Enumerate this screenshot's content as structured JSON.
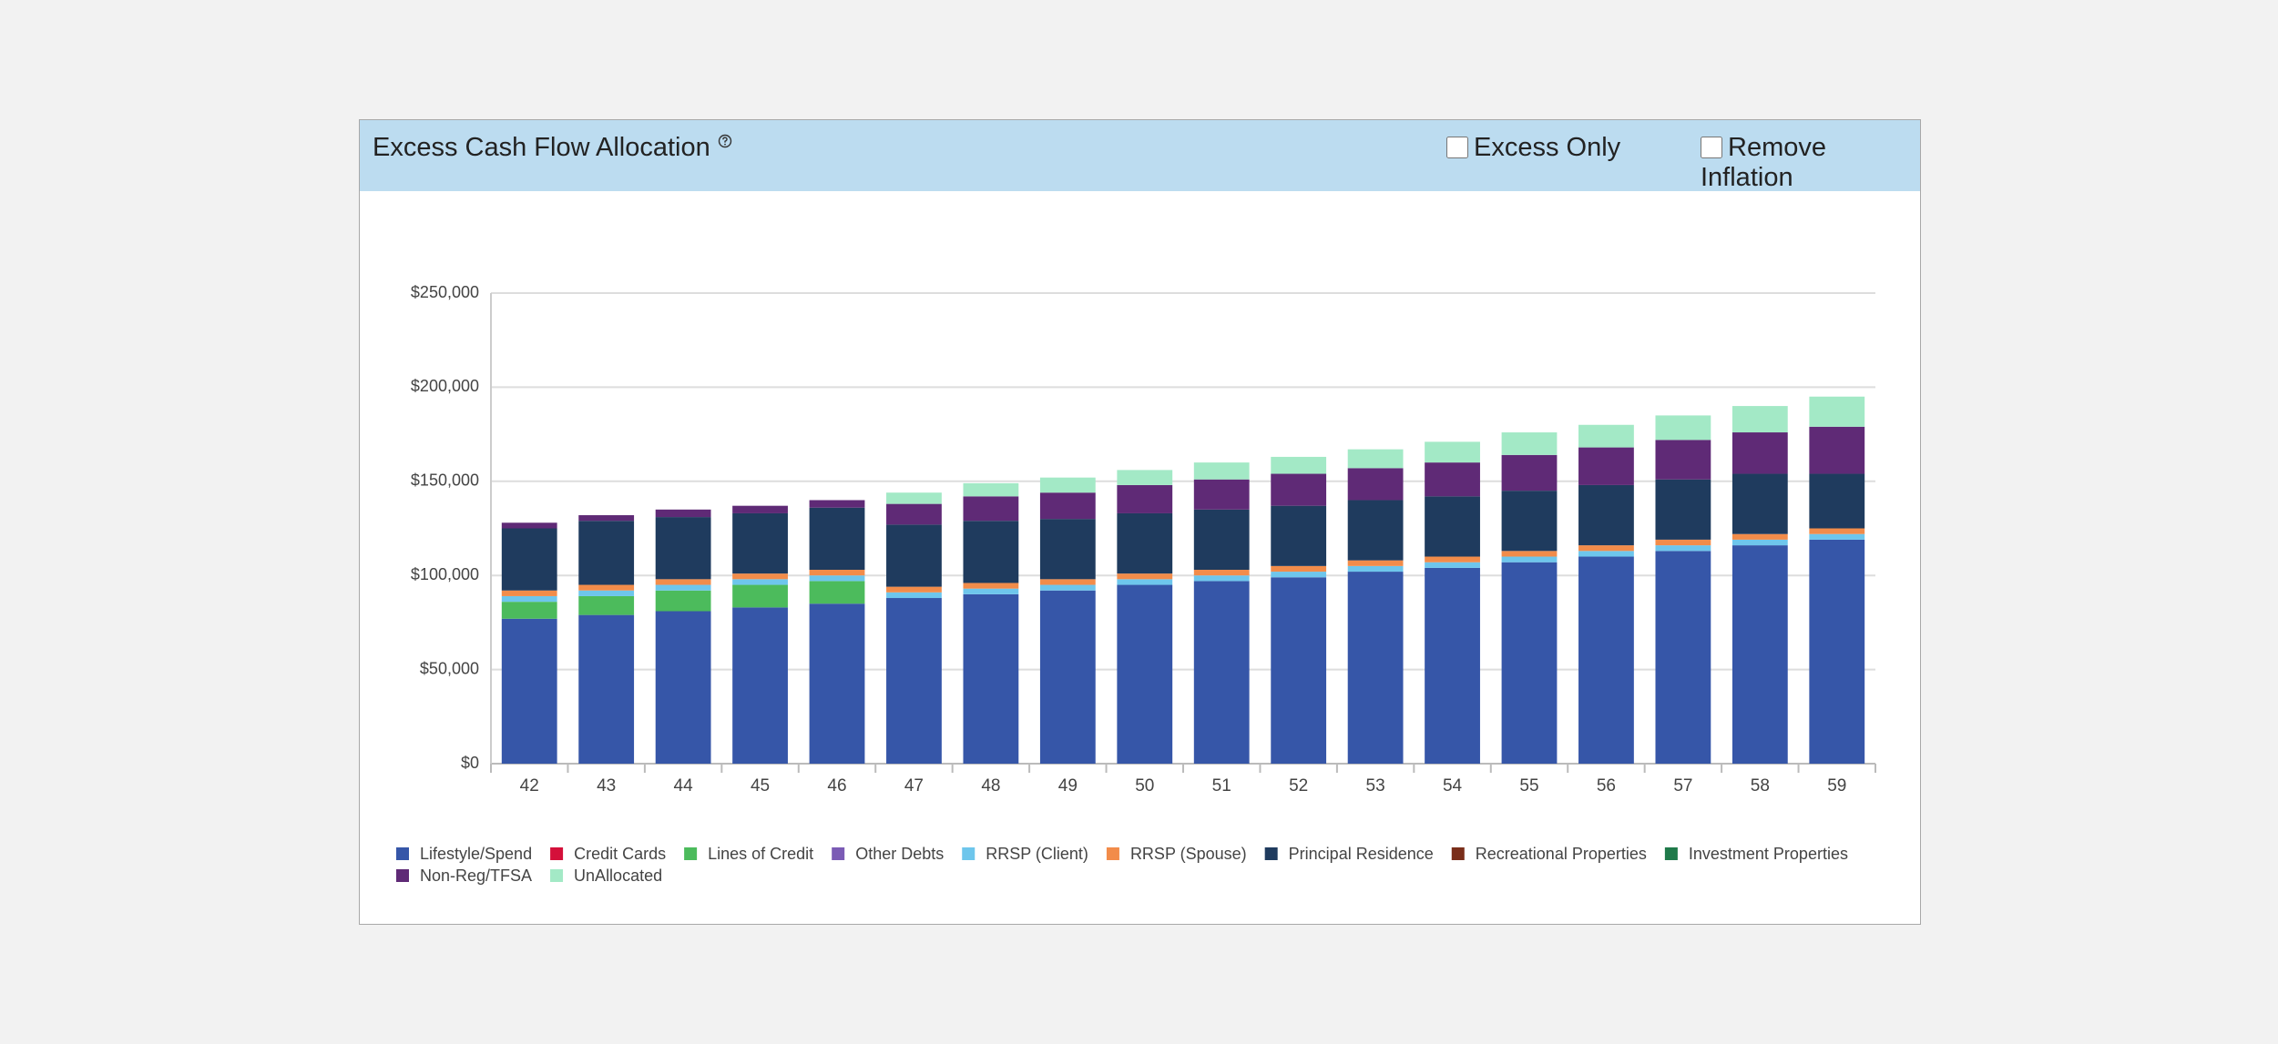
{
  "chart_data": {
    "type": "stacked-bar",
    "title": "Excess Cash Flow Allocation",
    "categories": [
      "42",
      "43",
      "44",
      "45",
      "46",
      "47",
      "48",
      "49",
      "50",
      "51",
      "52",
      "53",
      "54",
      "55",
      "56",
      "57",
      "58",
      "59"
    ],
    "series": [
      {
        "name": "Lifestyle/Spend",
        "color": "#3656a8",
        "values": [
          77000,
          79000,
          81000,
          83000,
          85000,
          88000,
          90000,
          92000,
          95000,
          97000,
          99000,
          102000,
          104000,
          107000,
          110000,
          113000,
          116000,
          119000
        ]
      },
      {
        "name": "Credit Cards",
        "color": "#d4103a",
        "values": [
          0,
          0,
          0,
          0,
          0,
          0,
          0,
          0,
          0,
          0,
          0,
          0,
          0,
          0,
          0,
          0,
          0,
          0
        ]
      },
      {
        "name": "Lines of Credit",
        "color": "#4cbb5c",
        "values": [
          9000,
          10000,
          11000,
          12000,
          12000,
          0,
          0,
          0,
          0,
          0,
          0,
          0,
          0,
          0,
          0,
          0,
          0,
          0
        ]
      },
      {
        "name": "Other Debts",
        "color": "#7b5bb5",
        "values": [
          0,
          0,
          0,
          0,
          0,
          0,
          0,
          0,
          0,
          0,
          0,
          0,
          0,
          0,
          0,
          0,
          0,
          0
        ]
      },
      {
        "name": "RRSP (Client)",
        "color": "#6ec6ec",
        "values": [
          3000,
          3000,
          3000,
          3000,
          3000,
          3000,
          3000,
          3000,
          3000,
          3000,
          3000,
          3000,
          3000,
          3000,
          3000,
          3000,
          3000,
          3000
        ]
      },
      {
        "name": "RRSP (Spouse)",
        "color": "#f28c4a",
        "values": [
          3000,
          3000,
          3000,
          3000,
          3000,
          3000,
          3000,
          3000,
          3000,
          3000,
          3000,
          3000,
          3000,
          3000,
          3000,
          3000,
          3000,
          3000
        ]
      },
      {
        "name": "Principal Residence",
        "color": "#1f3b5e",
        "values": [
          33000,
          34000,
          33000,
          32000,
          33000,
          33000,
          33000,
          32000,
          32000,
          32000,
          32000,
          32000,
          32000,
          32000,
          32000,
          32000,
          32000,
          29000
        ]
      },
      {
        "name": "Recreational Properties",
        "color": "#7a2e1a",
        "values": [
          0,
          0,
          0,
          0,
          0,
          0,
          0,
          0,
          0,
          0,
          0,
          0,
          0,
          0,
          0,
          0,
          0,
          0
        ]
      },
      {
        "name": "Investment Properties",
        "color": "#1f7a4a",
        "values": [
          0,
          0,
          0,
          0,
          0,
          0,
          0,
          0,
          0,
          0,
          0,
          0,
          0,
          0,
          0,
          0,
          0,
          0
        ]
      },
      {
        "name": "Non-Reg/TFSA",
        "color": "#5f2a76",
        "values": [
          3000,
          3000,
          4000,
          4000,
          4000,
          11000,
          13000,
          14000,
          15000,
          16000,
          17000,
          17000,
          18000,
          19000,
          20000,
          21000,
          22000,
          25000
        ]
      },
      {
        "name": "UnAllocated",
        "color": "#a3e9c6",
        "values": [
          0,
          0,
          0,
          0,
          0,
          6000,
          7000,
          8000,
          8000,
          9000,
          9000,
          10000,
          11000,
          12000,
          12000,
          13000,
          14000,
          16000
        ]
      }
    ],
    "ylim": [
      0,
      250000
    ],
    "yticks": [
      {
        "value": 0,
        "label": "$0"
      },
      {
        "value": 50000,
        "label": "$50,000"
      },
      {
        "value": 100000,
        "label": "$100,000"
      },
      {
        "value": 150000,
        "label": "$150,000"
      },
      {
        "value": 200000,
        "label": "$200,000"
      },
      {
        "value": 250000,
        "label": "$250,000"
      }
    ],
    "grid": true
  },
  "controls": [
    "Excess Only",
    "Remove Inflation"
  ]
}
